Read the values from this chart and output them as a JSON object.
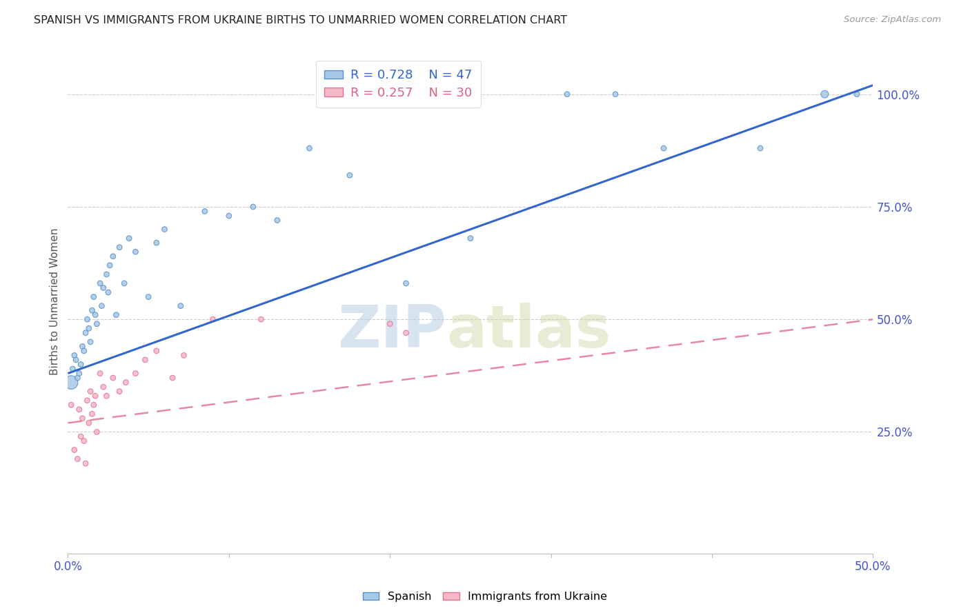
{
  "title": "SPANISH VS IMMIGRANTS FROM UKRAINE BIRTHS TO UNMARRIED WOMEN CORRELATION CHART",
  "source": "Source: ZipAtlas.com",
  "ylabel": "Births to Unmarried Women",
  "watermark": "ZIPatlas",
  "legend_blue_r": "R = 0.728",
  "legend_blue_n": "N = 47",
  "legend_pink_r": "R = 0.257",
  "legend_pink_n": "N = 30",
  "xlim": [
    0.0,
    0.5
  ],
  "ylim": [
    -0.02,
    1.1
  ],
  "xticks": [
    0.0,
    0.1,
    0.2,
    0.3,
    0.4,
    0.5
  ],
  "xtick_labels_show": [
    "0.0%",
    "",
    "",
    "",
    "",
    "50.0%"
  ],
  "yticks_right": [
    0.25,
    0.5,
    0.75,
    1.0
  ],
  "ytick_labels_right": [
    "25.0%",
    "50.0%",
    "75.0%",
    "100.0%"
  ],
  "blue_color": "#a8c8e8",
  "blue_edge_color": "#5590c8",
  "blue_line_color": "#3366cc",
  "pink_color": "#f5b8c8",
  "pink_edge_color": "#e87090",
  "pink_line_color": "#e06080",
  "grid_color": "#cccccc",
  "axis_label_color": "#4455cc",
  "title_color": "#222222",
  "watermark_color": "#c8d8f0",
  "blue_scatter_x": [
    0.002,
    0.003,
    0.004,
    0.005,
    0.006,
    0.007,
    0.008,
    0.009,
    0.01,
    0.011,
    0.012,
    0.013,
    0.014,
    0.015,
    0.016,
    0.017,
    0.018,
    0.02,
    0.021,
    0.022,
    0.024,
    0.025,
    0.026,
    0.028,
    0.03,
    0.032,
    0.035,
    0.038,
    0.042,
    0.05,
    0.055,
    0.06,
    0.07,
    0.085,
    0.1,
    0.115,
    0.13,
    0.15,
    0.175,
    0.21,
    0.25,
    0.31,
    0.34,
    0.37,
    0.43,
    0.47,
    0.49
  ],
  "blue_scatter_y": [
    0.36,
    0.39,
    0.42,
    0.41,
    0.37,
    0.38,
    0.4,
    0.44,
    0.43,
    0.47,
    0.5,
    0.48,
    0.45,
    0.52,
    0.55,
    0.51,
    0.49,
    0.58,
    0.53,
    0.57,
    0.6,
    0.56,
    0.62,
    0.64,
    0.51,
    0.66,
    0.58,
    0.68,
    0.65,
    0.55,
    0.67,
    0.7,
    0.53,
    0.74,
    0.73,
    0.75,
    0.72,
    0.88,
    0.82,
    0.58,
    0.68,
    1.0,
    1.0,
    0.88,
    0.88,
    1.0,
    1.0
  ],
  "blue_scatter_sizes": [
    200,
    30,
    30,
    30,
    30,
    30,
    30,
    30,
    30,
    30,
    30,
    30,
    30,
    30,
    30,
    30,
    30,
    30,
    30,
    30,
    30,
    30,
    30,
    30,
    30,
    30,
    30,
    30,
    30,
    30,
    30,
    30,
    30,
    30,
    30,
    30,
    30,
    30,
    30,
    30,
    30,
    30,
    30,
    30,
    30,
    60,
    30
  ],
  "pink_scatter_x": [
    0.002,
    0.004,
    0.006,
    0.007,
    0.008,
    0.009,
    0.01,
    0.011,
    0.012,
    0.013,
    0.014,
    0.015,
    0.016,
    0.017,
    0.018,
    0.02,
    0.022,
    0.024,
    0.028,
    0.032,
    0.036,
    0.042,
    0.048,
    0.055,
    0.065,
    0.072,
    0.09,
    0.12,
    0.2,
    0.21
  ],
  "pink_scatter_y": [
    0.31,
    0.21,
    0.19,
    0.3,
    0.24,
    0.28,
    0.23,
    0.18,
    0.32,
    0.27,
    0.34,
    0.29,
    0.31,
    0.33,
    0.25,
    0.38,
    0.35,
    0.33,
    0.37,
    0.34,
    0.36,
    0.38,
    0.41,
    0.43,
    0.37,
    0.42,
    0.5,
    0.5,
    0.49,
    0.47
  ],
  "pink_scatter_sizes": [
    30,
    30,
    30,
    30,
    30,
    30,
    30,
    30,
    30,
    30,
    30,
    30,
    30,
    30,
    30,
    30,
    30,
    30,
    30,
    30,
    30,
    30,
    30,
    30,
    30,
    30,
    30,
    30,
    30,
    30
  ],
  "blue_trend_x": [
    0.0,
    0.5
  ],
  "blue_trend_y": [
    0.38,
    1.02
  ],
  "pink_trend_x": [
    0.0,
    0.5
  ],
  "pink_trend_y": [
    0.27,
    0.5
  ]
}
